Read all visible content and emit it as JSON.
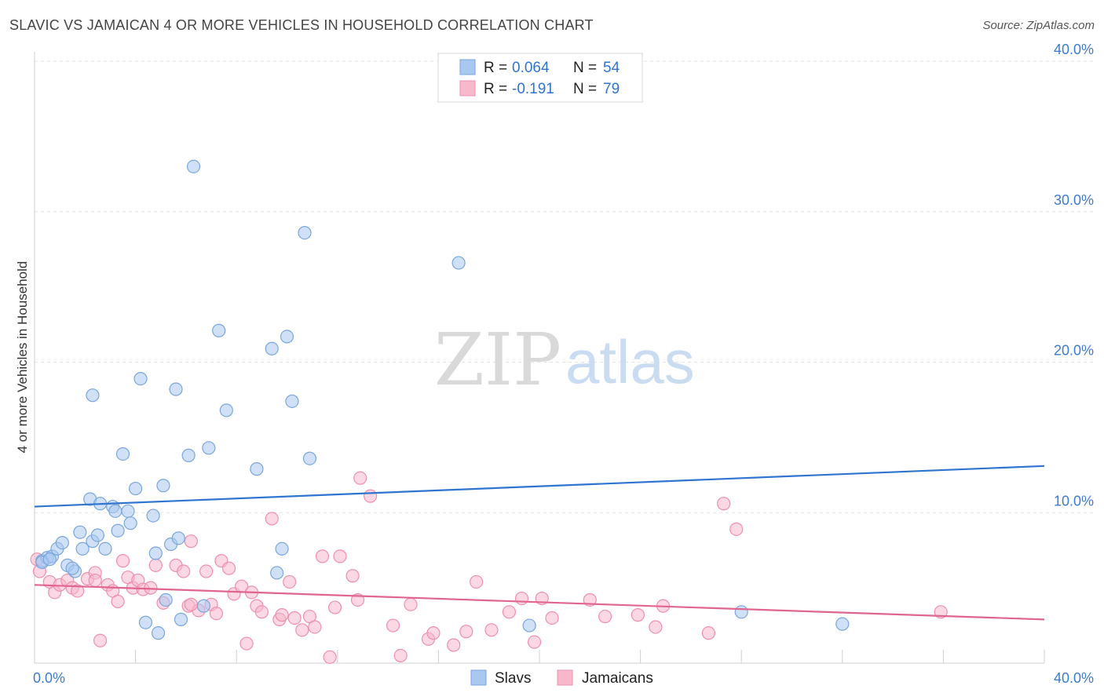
{
  "title": "SLAVIC VS JAMAICAN 4 OR MORE VEHICLES IN HOUSEHOLD CORRELATION CHART",
  "source": "Source: ZipAtlas.com",
  "watermark": {
    "zip": "ZIP",
    "atlas": "atlas"
  },
  "colors": {
    "slavs_fill": "#a9c8f0",
    "slavs_stroke": "#7aa6dd",
    "slavs_line": "#2f74d0",
    "jam_fill": "#f7b8cc",
    "jam_stroke": "#ee8fae",
    "jam_line": "#e0658f",
    "axis_label": "#3d7bd0",
    "grid": "#e3e3e3"
  },
  "legend_top": [
    {
      "r_label": "R =",
      "r_value": "0.064",
      "n_label": "N =",
      "n_value": "54"
    },
    {
      "r_label": "R =",
      "r_value": "-0.191",
      "n_label": "N =",
      "n_value": "79"
    }
  ],
  "legend_bottom": [
    "Slavs",
    "Jamaicans"
  ],
  "chart_data": {
    "type": "scatter",
    "title": "SLAVIC VS JAMAICAN 4 OR MORE VEHICLES IN HOUSEHOLD CORRELATION CHART",
    "xlabel": "",
    "ylabel": "4 or more Vehicles in Household",
    "xlim": [
      0,
      40
    ],
    "ylim": [
      0,
      40
    ],
    "x_tick_labels": [
      "0.0%",
      "40.0%"
    ],
    "y_ticks": [
      10,
      20,
      30,
      40
    ],
    "y_tick_labels": [
      "10.0%",
      "20.0%",
      "30.0%",
      "40.0%"
    ],
    "grid": true,
    "legend_position": "top-center",
    "series": [
      {
        "name": "Slavs",
        "r": 0.064,
        "n": 54,
        "trend": {
          "x": [
            0,
            40
          ],
          "y": [
            10.4,
            13.1
          ]
        },
        "points": [
          [
            0.3,
            6.8
          ],
          [
            0.5,
            7.0
          ],
          [
            0.7,
            7.1
          ],
          [
            0.9,
            7.6
          ],
          [
            1.1,
            8.0
          ],
          [
            1.3,
            6.5
          ],
          [
            1.6,
            6.1
          ],
          [
            1.8,
            8.7
          ],
          [
            1.9,
            7.6
          ],
          [
            2.2,
            10.9
          ],
          [
            2.3,
            8.1
          ],
          [
            2.5,
            8.5
          ],
          [
            2.6,
            10.6
          ],
          [
            2.8,
            7.6
          ],
          [
            3.1,
            10.4
          ],
          [
            3.2,
            10.1
          ],
          [
            3.3,
            8.8
          ],
          [
            3.5,
            13.9
          ],
          [
            3.7,
            10.1
          ],
          [
            3.8,
            9.3
          ],
          [
            4.0,
            11.6
          ],
          [
            4.2,
            18.9
          ],
          [
            4.4,
            2.7
          ],
          [
            4.7,
            9.8
          ],
          [
            4.8,
            7.3
          ],
          [
            4.9,
            2.0
          ],
          [
            5.1,
            11.8
          ],
          [
            5.2,
            4.2
          ],
          [
            5.4,
            7.9
          ],
          [
            5.6,
            18.2
          ],
          [
            5.7,
            8.3
          ],
          [
            5.8,
            2.9
          ],
          [
            6.1,
            13.8
          ],
          [
            6.3,
            33.0
          ],
          [
            6.7,
            3.8
          ],
          [
            6.9,
            14.3
          ],
          [
            7.3,
            22.1
          ],
          [
            7.6,
            16.8
          ],
          [
            8.8,
            12.9
          ],
          [
            9.4,
            20.9
          ],
          [
            9.6,
            6.0
          ],
          [
            9.8,
            7.6
          ],
          [
            10.0,
            21.7
          ],
          [
            10.2,
            17.4
          ],
          [
            10.7,
            28.6
          ],
          [
            10.9,
            13.6
          ],
          [
            16.8,
            26.6
          ],
          [
            19.6,
            2.5
          ],
          [
            28.0,
            3.4
          ],
          [
            32.0,
            2.6
          ],
          [
            2.3,
            17.8
          ],
          [
            0.3,
            6.7
          ],
          [
            0.6,
            6.9
          ],
          [
            1.5,
            6.3
          ]
        ]
      },
      {
        "name": "Jamaicans",
        "r": -0.191,
        "n": 79,
        "trend": {
          "x": [
            0,
            40
          ],
          "y": [
            5.2,
            2.9
          ]
        },
        "points": [
          [
            0.1,
            6.9
          ],
          [
            0.2,
            6.1
          ],
          [
            0.6,
            5.4
          ],
          [
            0.8,
            4.7
          ],
          [
            1.0,
            5.2
          ],
          [
            1.3,
            5.5
          ],
          [
            1.5,
            5.0
          ],
          [
            1.7,
            4.8
          ],
          [
            2.1,
            5.6
          ],
          [
            2.4,
            6.0
          ],
          [
            2.6,
            1.5
          ],
          [
            2.9,
            5.2
          ],
          [
            3.1,
            4.8
          ],
          [
            3.3,
            4.1
          ],
          [
            3.5,
            6.8
          ],
          [
            3.7,
            5.7
          ],
          [
            3.9,
            5.0
          ],
          [
            4.1,
            5.5
          ],
          [
            4.3,
            4.9
          ],
          [
            4.6,
            5.0
          ],
          [
            4.8,
            6.5
          ],
          [
            5.1,
            4.0
          ],
          [
            5.6,
            6.5
          ],
          [
            5.9,
            6.1
          ],
          [
            6.1,
            3.8
          ],
          [
            6.2,
            8.1
          ],
          [
            6.5,
            3.5
          ],
          [
            6.8,
            6.1
          ],
          [
            7.0,
            3.9
          ],
          [
            7.2,
            3.3
          ],
          [
            7.4,
            6.8
          ],
          [
            7.7,
            6.3
          ],
          [
            7.9,
            4.6
          ],
          [
            8.2,
            5.1
          ],
          [
            8.4,
            1.3
          ],
          [
            8.6,
            4.7
          ],
          [
            8.8,
            3.8
          ],
          [
            9.0,
            3.4
          ],
          [
            9.4,
            9.6
          ],
          [
            9.7,
            2.9
          ],
          [
            9.8,
            3.2
          ],
          [
            10.1,
            5.4
          ],
          [
            10.3,
            3.0
          ],
          [
            10.6,
            2.2
          ],
          [
            10.9,
            3.1
          ],
          [
            11.1,
            2.4
          ],
          [
            11.4,
            7.1
          ],
          [
            11.7,
            0.4
          ],
          [
            11.9,
            3.7
          ],
          [
            12.1,
            7.1
          ],
          [
            12.6,
            5.8
          ],
          [
            12.9,
            12.3
          ],
          [
            13.3,
            11.1
          ],
          [
            12.8,
            4.2
          ],
          [
            14.2,
            2.5
          ],
          [
            14.5,
            0.5
          ],
          [
            14.9,
            3.9
          ],
          [
            15.6,
            1.6
          ],
          [
            15.8,
            2.0
          ],
          [
            16.6,
            1.2
          ],
          [
            17.1,
            2.1
          ],
          [
            17.5,
            5.4
          ],
          [
            18.1,
            2.2
          ],
          [
            18.8,
            3.4
          ],
          [
            19.3,
            4.3
          ],
          [
            19.8,
            1.4
          ],
          [
            20.1,
            4.3
          ],
          [
            20.5,
            3.0
          ],
          [
            22.0,
            4.2
          ],
          [
            22.6,
            3.1
          ],
          [
            23.9,
            3.2
          ],
          [
            24.6,
            2.4
          ],
          [
            24.9,
            3.8
          ],
          [
            26.7,
            2.0
          ],
          [
            27.3,
            10.6
          ],
          [
            27.8,
            8.9
          ],
          [
            35.9,
            3.4
          ],
          [
            2.4,
            5.5
          ],
          [
            6.2,
            3.9
          ]
        ]
      }
    ]
  }
}
